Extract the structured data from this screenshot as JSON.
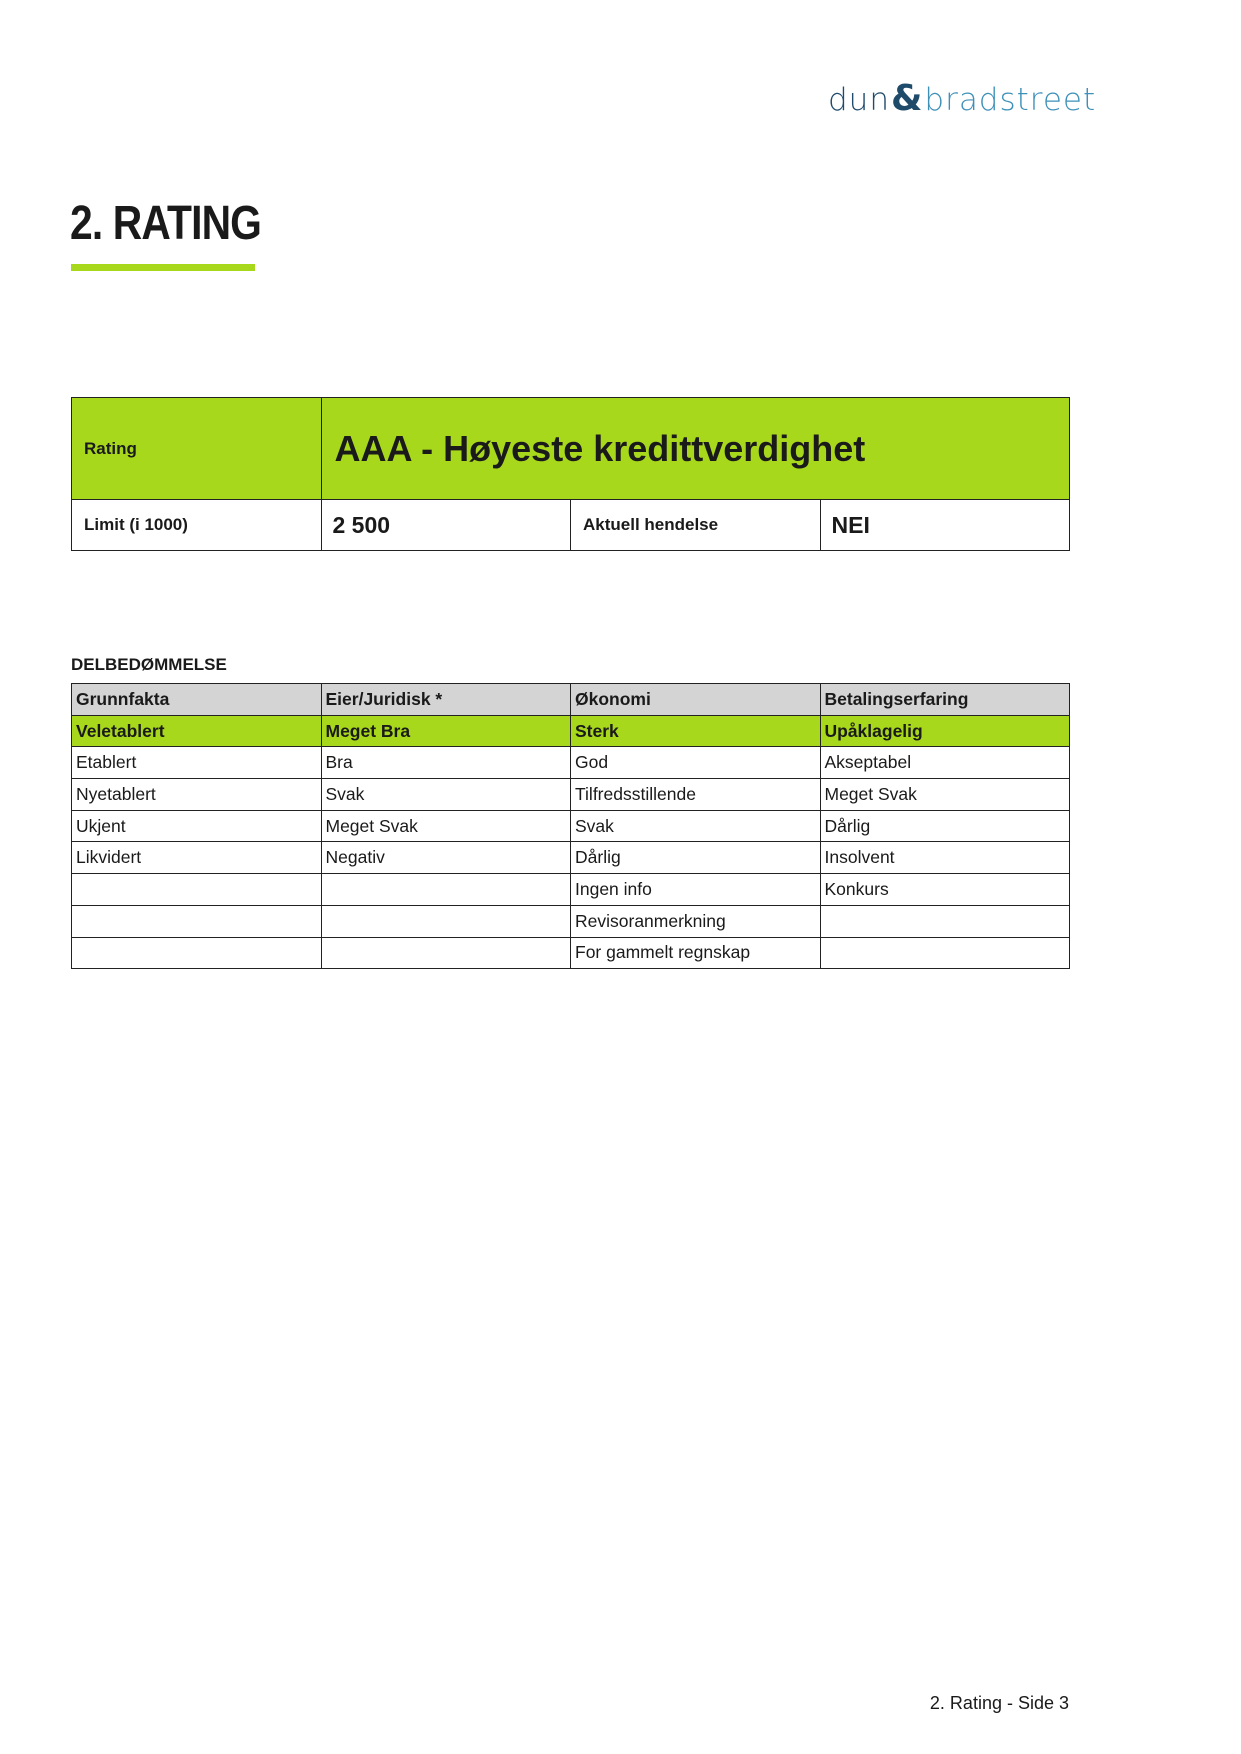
{
  "logo": {
    "part1": "dun",
    "amp": "&",
    "part2": "bradstreet"
  },
  "title": "2. RATING",
  "rating_table": {
    "rating_label": "Rating",
    "rating_value": "AAA - Høyeste kredittverdighet",
    "limit_label": "Limit (i 1000)",
    "limit_value": "2 500",
    "event_label": "Aktuell hendelse",
    "event_value": "NEI"
  },
  "sub_heading": "DELBEDØMMELSE",
  "sub_table": {
    "headers": [
      "Grunnfakta",
      "Eier/Juridisk *",
      "Økonomi",
      "Betalingserfaring"
    ],
    "rows": [
      [
        "Veletablert",
        "Meget Bra",
        "Sterk",
        "Upåklagelig"
      ],
      [
        "Etablert",
        "Bra",
        "God",
        "Akseptabel"
      ],
      [
        "Nyetablert",
        "Svak",
        "Tilfredsstillende",
        "Meget Svak"
      ],
      [
        "Ukjent",
        "Meget Svak",
        "Svak",
        "Dårlig"
      ],
      [
        "Likvidert",
        "Negativ",
        "Dårlig",
        "Insolvent"
      ],
      [
        "",
        "",
        "Ingen info",
        "Konkurs"
      ],
      [
        "",
        "",
        "Revisoranmerkning",
        ""
      ],
      [
        "",
        "",
        "For gammelt regnskap",
        ""
      ]
    ],
    "selected_row": 0
  },
  "footer": "2. Rating - Side 3",
  "colors": {
    "accent": "#a8d81c",
    "header_gray": "#d4d4d4",
    "logo_dark": "#1f4b6b",
    "logo_light": "#3d90b8"
  }
}
